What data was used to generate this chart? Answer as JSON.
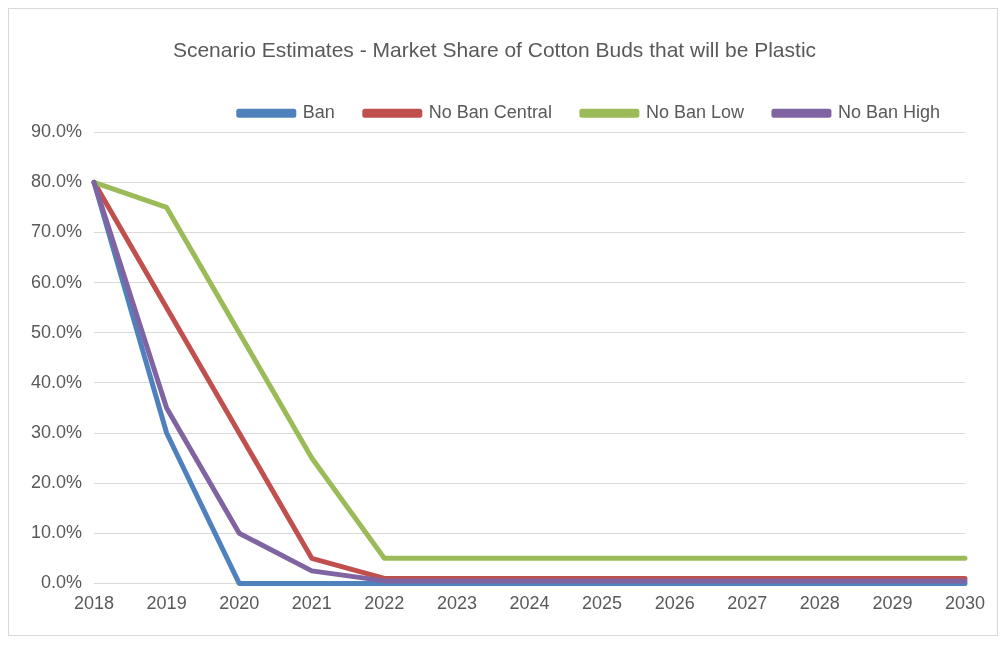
{
  "chart_data": {
    "type": "line",
    "title": "Scenario Estimates - Market Share of Cotton Buds that will be Plastic",
    "categories": [
      "2018",
      "2019",
      "2020",
      "2021",
      "2022",
      "2023",
      "2024",
      "2025",
      "2026",
      "2027",
      "2028",
      "2029",
      "2030"
    ],
    "series": [
      {
        "name": "Ban",
        "color": "#4f81bd",
        "values": [
          80,
          30,
          0,
          0,
          0,
          0,
          0,
          0,
          0,
          0,
          0,
          0,
          0
        ]
      },
      {
        "name": "No Ban Central",
        "color": "#c0504d",
        "values": [
          80,
          55,
          30,
          5,
          1,
          1,
          1,
          1,
          1,
          1,
          1,
          1,
          1
        ]
      },
      {
        "name": "No Ban Low",
        "color": "#9bbb59",
        "values": [
          80,
          75,
          50,
          25,
          5,
          5,
          5,
          5,
          5,
          5,
          5,
          5,
          5
        ]
      },
      {
        "name": "No Ban High",
        "color": "#8064a2",
        "values": [
          80,
          35,
          10,
          2.5,
          0.5,
          0.5,
          0.5,
          0.5,
          0.5,
          0.5,
          0.5,
          0.5,
          0.5
        ]
      }
    ],
    "ylim": [
      0,
      90
    ],
    "yticks": [
      {
        "value": 0,
        "label": "0.0%"
      },
      {
        "value": 10,
        "label": "10.0%"
      },
      {
        "value": 20,
        "label": "20.0%"
      },
      {
        "value": 30,
        "label": "30.0%"
      },
      {
        "value": 40,
        "label": "40.0%"
      },
      {
        "value": 50,
        "label": "50.0%"
      },
      {
        "value": 60,
        "label": "60.0%"
      },
      {
        "value": 70,
        "label": "70.0%"
      },
      {
        "value": 80,
        "label": "80.0%"
      },
      {
        "value": 90,
        "label": "90.0%"
      }
    ],
    "grid": "y",
    "legend": "top right",
    "marker": "none",
    "line_style": "solid"
  }
}
